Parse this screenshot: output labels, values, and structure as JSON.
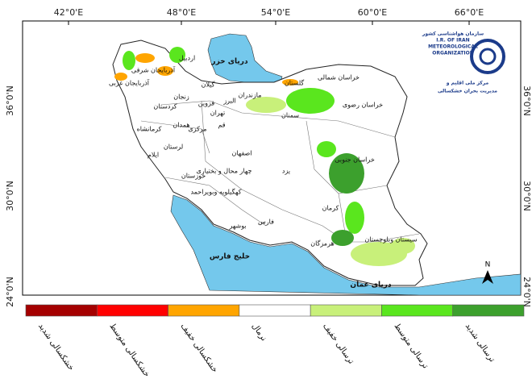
{
  "top_axis_labels": [
    "42°0'E",
    "48°0'E",
    "54°0'E",
    "60°0'E",
    "66°0'E"
  ],
  "left_axis_labels": [
    "36°0'N",
    "30°0'N",
    "24°0'N"
  ],
  "right_axis_labels": [
    "36°0'N",
    "30°0'N",
    "24°0'N"
  ],
  "water_labels": [
    "دریای خزر",
    "خلیج فارس",
    "دریای عمان"
  ],
  "provinces": [
    "اردبیل",
    "آذربایجان شرقی",
    "آذربایجان غربی",
    "زنجان",
    "گیلان",
    "قزوین",
    "البرز",
    "مازندران",
    "تهران",
    "کردستان",
    "همدان",
    "کرمانشاه",
    "مرکزی",
    "قم",
    "لرستان",
    "ایلام",
    "خوزستان",
    "اصفهان",
    "چهار محال و بختیاری",
    "کهگیلویه وبویراحمد",
    "بوشهر",
    "فارس",
    "یزد",
    "سمنان",
    "گلستان",
    "خراسان شمالی",
    "خراسان رضوی",
    "خراسان جنوبی",
    "کرمان",
    "هرمزگان",
    "سیستان وبلوچستان"
  ],
  "legend": {
    "items": [
      {
        "label": "خشکسالی شدید",
        "color": "#a50000"
      },
      {
        "label": "خشکسالی متوسط",
        "color": "#ff0000"
      },
      {
        "label": "خشکسالی خفیف",
        "color": "#ffa500"
      },
      {
        "label": "نرمال",
        "color": "#ffffff"
      },
      {
        "label": "ترسالی خفیف",
        "color": "#c8f07a"
      },
      {
        "label": "ترسالی متوسط",
        "color": "#5ae61e"
      },
      {
        "label": "ترسالی شدید",
        "color": "#3ca02d"
      }
    ]
  },
  "logo": {
    "lines": [
      "سازمان هواشناسی کشور",
      "I.R. OF IRAN",
      "METEOROLOGICAL",
      "ORGANIZATION"
    ],
    "caption": [
      "مرکز ملی اقلیم و",
      "مدیریت بحران خشکسالی"
    ]
  },
  "north": "N"
}
